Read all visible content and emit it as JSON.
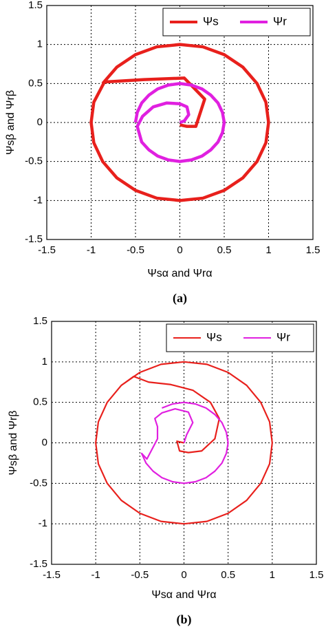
{
  "chart_data": [
    {
      "type": "line",
      "caption": "(a)",
      "xlabel": "Ψsα and Ψrα",
      "ylabel": "Ψsβ and Ψrβ",
      "xlim": [
        -1.5,
        1.5
      ],
      "ylim": [
        -1.5,
        1.5
      ],
      "xticks": [
        -1.5,
        -1,
        -0.5,
        0,
        0.5,
        1,
        1.5
      ],
      "yticks": [
        -1.5,
        -1,
        -0.5,
        0,
        0.5,
        1,
        1.5
      ],
      "grid": true,
      "legend": "upper right",
      "series": [
        {
          "name": "Ψs",
          "color": "#e8201c",
          "x": [
            0,
            0.08,
            0.18,
            0.28,
            0.05,
            -0.4,
            -0.85,
            -0.97,
            -1,
            -0.97,
            -0.87,
            -0.71,
            -0.5,
            -0.26,
            0,
            0.26,
            0.5,
            0.71,
            0.87,
            0.97,
            1,
            0.97,
            0.87,
            0.71,
            0.5,
            0.26,
            0,
            -0.26,
            -0.5,
            -0.71,
            -0.87
          ],
          "values": [
            -0.03,
            -0.05,
            -0.05,
            0.3,
            0.57,
            0.55,
            0.52,
            0.26,
            0,
            -0.26,
            -0.5,
            -0.71,
            -0.87,
            -0.97,
            -1,
            -0.97,
            -0.87,
            -0.71,
            -0.5,
            -0.26,
            0,
            0.26,
            0.5,
            0.71,
            0.87,
            0.97,
            1,
            0.97,
            0.87,
            0.71,
            0.5
          ]
        },
        {
          "name": "Ψr",
          "color": "#e020e0",
          "x": [
            0,
            0.05,
            0.1,
            0.08,
            0,
            -0.15,
            -0.3,
            -0.42,
            -0.48,
            -0.43,
            -0.35,
            -0.25,
            -0.13,
            0,
            0.13,
            0.25,
            0.35,
            0.43,
            0.48,
            0.5,
            0.48,
            0.43,
            0.35,
            0.25,
            0.13,
            0,
            -0.13,
            -0.25,
            -0.35,
            -0.43,
            -0.48,
            -0.5
          ],
          "values": [
            0,
            0.02,
            0.1,
            0.2,
            0.24,
            0.25,
            0.2,
            0.08,
            -0.05,
            -0.25,
            -0.35,
            -0.43,
            -0.48,
            -0.5,
            -0.48,
            -0.43,
            -0.35,
            -0.25,
            -0.13,
            0,
            0.13,
            0.25,
            0.35,
            0.43,
            0.48,
            0.5,
            0.48,
            0.43,
            0.35,
            0.25,
            0.13,
            0
          ]
        }
      ]
    },
    {
      "type": "line",
      "caption": "(b)",
      "xlabel": "Ψsα and Ψrα",
      "ylabel": "Ψsβ and Ψrβ",
      "xlim": [
        -1.5,
        1.5
      ],
      "ylim": [
        -1.5,
        1.5
      ],
      "xticks": [
        -1.5,
        -1,
        -0.5,
        0,
        0.5,
        1,
        1.5
      ],
      "yticks": [
        -1.5,
        -1,
        -0.5,
        0,
        0.5,
        1,
        1.5
      ],
      "grid": true,
      "legend": "upper right",
      "series": [
        {
          "name": "Ψs",
          "color": "#e8201c",
          "x": [
            0,
            -0.08,
            -0.05,
            0.05,
            0.2,
            0.35,
            0.4,
            0.3,
            0.1,
            -0.15,
            -0.4,
            -0.57,
            -0.71,
            -0.87,
            -0.97,
            -1,
            -0.97,
            -0.87,
            -0.71,
            -0.5,
            -0.26,
            0,
            0.26,
            0.5,
            0.71,
            0.87,
            0.97,
            1,
            0.97,
            0.87,
            0.71,
            0.5,
            0.26,
            0,
            -0.26,
            -0.5,
            -0.71
          ],
          "values": [
            0,
            0.02,
            -0.1,
            -0.12,
            -0.1,
            0.05,
            0.3,
            0.5,
            0.65,
            0.72,
            0.75,
            0.82,
            0.71,
            0.5,
            0.26,
            0,
            -0.26,
            -0.5,
            -0.71,
            -0.87,
            -0.97,
            -1,
            -0.97,
            -0.87,
            -0.71,
            -0.5,
            -0.26,
            0,
            0.26,
            0.5,
            0.71,
            0.87,
            0.97,
            1,
            0.97,
            0.87,
            0.71
          ]
        },
        {
          "name": "Ψr",
          "color": "#e020e0",
          "x": [
            0,
            0.03,
            0.1,
            0.05,
            -0.1,
            -0.25,
            -0.33,
            -0.3,
            -0.3,
            -0.42,
            -0.48,
            -0.43,
            -0.35,
            -0.25,
            -0.13,
            0,
            0.13,
            0.25,
            0.35,
            0.43,
            0.48,
            0.5,
            0.48,
            0.43,
            0.35,
            0.25,
            0.13,
            0,
            -0.13,
            -0.25
          ],
          "values": [
            0,
            0.1,
            0.25,
            0.38,
            0.42,
            0.37,
            0.3,
            0.2,
            0.05,
            -0.2,
            -0.13,
            -0.25,
            -0.35,
            -0.43,
            -0.48,
            -0.5,
            -0.48,
            -0.43,
            -0.35,
            -0.25,
            -0.13,
            0,
            0.13,
            0.25,
            0.35,
            0.43,
            0.48,
            0.5,
            0.48,
            0.43
          ]
        }
      ]
    }
  ]
}
